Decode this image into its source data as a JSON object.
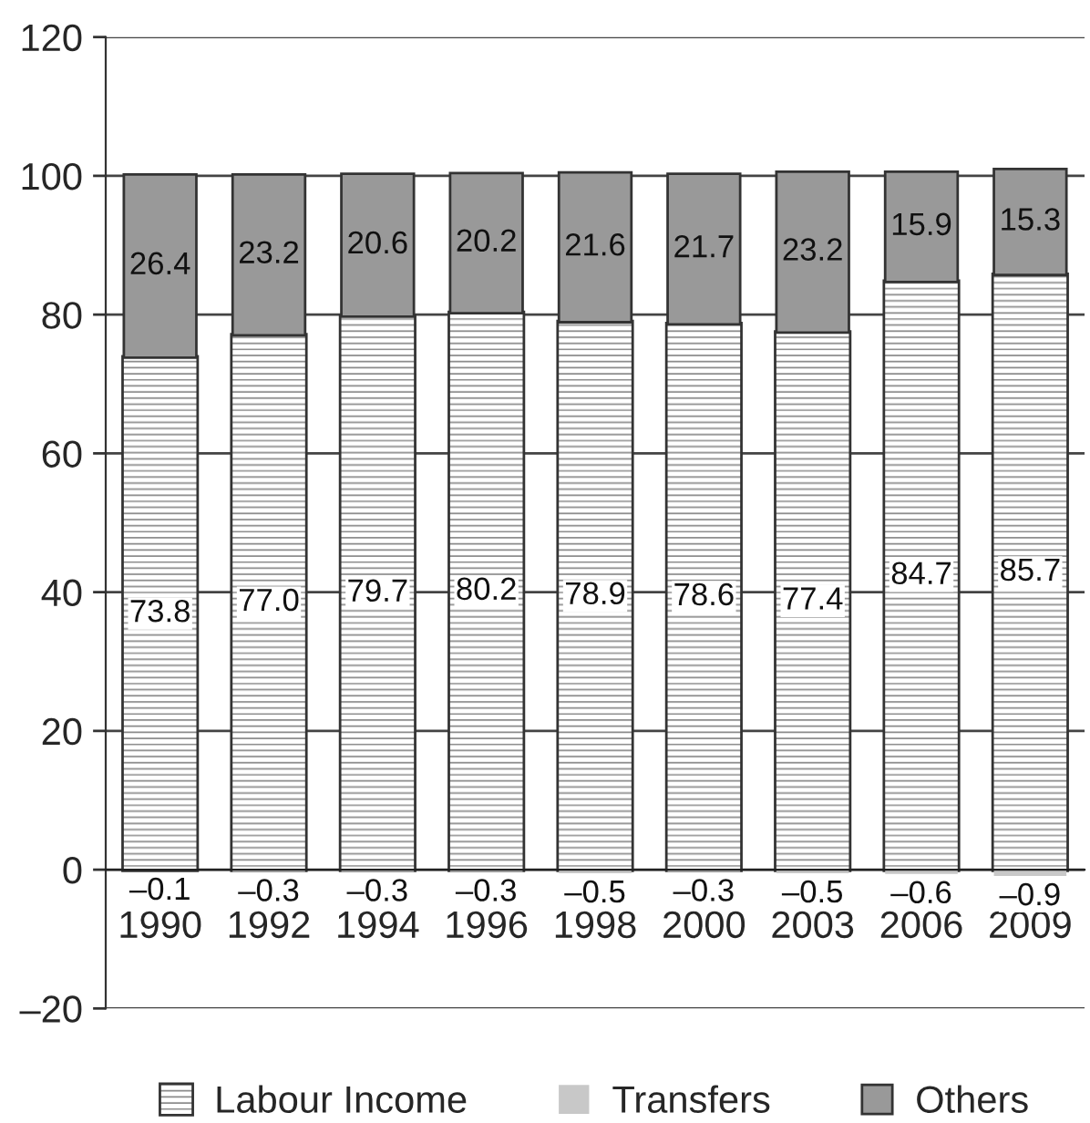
{
  "chart_data": {
    "type": "bar",
    "stacked": true,
    "categories": [
      "1990",
      "1992",
      "1994",
      "1996",
      "1998",
      "2000",
      "2003",
      "2006",
      "2009"
    ],
    "series": [
      {
        "name": "Labour Income",
        "color": "#ffffff",
        "values": [
          73.8,
          77.0,
          79.7,
          80.2,
          78.9,
          78.6,
          77.4,
          84.7,
          85.7
        ],
        "value_labels": [
          "73.8",
          "77.0",
          "79.7",
          "80.2",
          "78.9",
          "78.6",
          "77.4",
          "84.7",
          "85.7"
        ]
      },
      {
        "name": "Transfers",
        "color": "#c8c8c8",
        "values": [
          -0.1,
          -0.3,
          -0.3,
          -0.3,
          -0.5,
          -0.3,
          -0.5,
          -0.6,
          -0.9
        ],
        "value_labels": [
          "–0.1",
          "–0.3",
          "–0.3",
          "–0.3",
          "–0.5",
          "–0.3",
          "–0.5",
          "–0.6",
          "–0.9"
        ]
      },
      {
        "name": "Others",
        "color": "#999999",
        "values": [
          26.4,
          23.2,
          20.6,
          20.2,
          21.6,
          21.7,
          23.2,
          15.9,
          15.3
        ],
        "value_labels": [
          "26.4",
          "23.2",
          "20.6",
          "20.2",
          "21.6",
          "21.7",
          "23.2",
          "15.9",
          "15.3"
        ]
      }
    ],
    "ylim": [
      -20,
      120
    ],
    "yticks": [
      {
        "value": -20,
        "label": "–20"
      },
      0,
      20,
      40,
      60,
      80,
      100,
      120
    ],
    "grid": "y",
    "legend": "bottom"
  }
}
